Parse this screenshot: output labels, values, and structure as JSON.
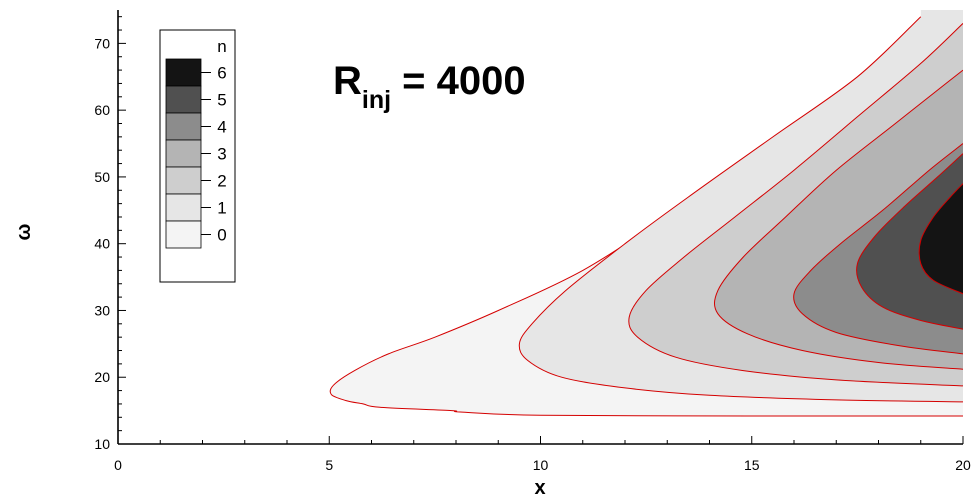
{
  "chart_data": {
    "type": "contour",
    "title": "",
    "xlabel": "x",
    "ylabel": "ω",
    "xlim": [
      0,
      20
    ],
    "ylim": [
      10,
      75
    ],
    "x_ticks": [
      0,
      5,
      10,
      15,
      20
    ],
    "y_ticks": [
      10,
      20,
      30,
      40,
      50,
      60,
      70
    ],
    "annotation": {
      "main": "R",
      "subscript": "inj",
      "rest": " = 4000"
    },
    "legend": {
      "title": "n",
      "position": "top-left",
      "levels": [
        {
          "label": "6",
          "color": "#141414"
        },
        {
          "label": "5",
          "color": "#505050"
        },
        {
          "label": "4",
          "color": "#8c8c8c"
        },
        {
          "label": "3",
          "color": "#b4b4b4"
        },
        {
          "label": "2",
          "color": "#cecece"
        },
        {
          "label": "1",
          "color": "#e6e6e6"
        },
        {
          "label": "0",
          "color": "#f4f4f4"
        }
      ]
    },
    "contours": [
      {
        "level": "1",
        "color": "#f4f4f4",
        "points": [
          [
            20,
            14.2
          ],
          [
            15,
            14.2
          ],
          [
            10,
            14.3
          ],
          [
            8.1,
            14.8
          ],
          [
            7.9,
            15
          ],
          [
            6.2,
            15.5
          ],
          [
            5.8,
            16
          ],
          [
            5.4,
            16.5
          ],
          [
            5.05,
            17.4
          ],
          [
            5.1,
            18.8
          ],
          [
            5.6,
            21
          ],
          [
            6.4,
            23.5
          ],
          [
            7.5,
            26
          ],
          [
            9,
            30
          ],
          [
            11,
            36
          ],
          [
            13,
            44
          ],
          [
            15.2,
            53
          ],
          [
            17.4,
            63
          ],
          [
            20,
            74
          ]
        ]
      },
      {
        "level": "2",
        "color": "#e6e6e6",
        "points": [
          [
            20,
            16.3
          ],
          [
            17,
            16.6
          ],
          [
            14,
            17.3
          ],
          [
            12,
            18.4
          ],
          [
            10.5,
            20
          ],
          [
            9.7,
            22.5
          ],
          [
            9.5,
            25
          ],
          [
            9.8,
            28
          ],
          [
            10.6,
            33
          ],
          [
            12,
            40
          ],
          [
            13.5,
            47
          ],
          [
            15.5,
            56
          ],
          [
            17.5,
            65
          ],
          [
            19,
            74
          ]
        ]
      },
      {
        "level": "3",
        "color": "#cecece",
        "points": [
          [
            20,
            18.7
          ],
          [
            17,
            19.6
          ],
          [
            14.8,
            21
          ],
          [
            13.2,
            23
          ],
          [
            12.3,
            26
          ],
          [
            12.1,
            29
          ],
          [
            12.5,
            33
          ],
          [
            13.4,
            38
          ],
          [
            14.6,
            44
          ],
          [
            16,
            51
          ],
          [
            17.5,
            59
          ],
          [
            19,
            67
          ],
          [
            20,
            73
          ]
        ]
      },
      {
        "level": "4",
        "color": "#b4b4b4",
        "points": [
          [
            20,
            21.2
          ],
          [
            18,
            22.2
          ],
          [
            16.2,
            24
          ],
          [
            14.9,
            26.5
          ],
          [
            14.2,
            29.5
          ],
          [
            14.2,
            33
          ],
          [
            14.8,
            38
          ],
          [
            15.8,
            44
          ],
          [
            17,
            51
          ],
          [
            18.4,
            58
          ],
          [
            19.6,
            64
          ],
          [
            20,
            66
          ]
        ]
      },
      {
        "level": "5",
        "color": "#8c8c8c",
        "points": [
          [
            20,
            23.5
          ],
          [
            18.5,
            24.7
          ],
          [
            17,
            26.7
          ],
          [
            16.2,
            29.5
          ],
          [
            16,
            32.5
          ],
          [
            16.4,
            36
          ],
          [
            17.1,
            40
          ],
          [
            18.1,
            45
          ],
          [
            19.2,
            51
          ],
          [
            20,
            55
          ]
        ]
      },
      {
        "level": "6",
        "color": "#505050",
        "points": [
          [
            20,
            27.2
          ],
          [
            19,
            28.5
          ],
          [
            18.1,
            30.5
          ],
          [
            17.6,
            33.5
          ],
          [
            17.5,
            37
          ],
          [
            17.9,
            41
          ],
          [
            18.6,
            45.5
          ],
          [
            19.4,
            50
          ],
          [
            20,
            53.5
          ]
        ]
      },
      {
        "level": "7",
        "color": "#141414",
        "points": [
          [
            20,
            32.5
          ],
          [
            19.3,
            34.5
          ],
          [
            19,
            37
          ],
          [
            19,
            40.5
          ],
          [
            19.3,
            44
          ],
          [
            19.7,
            47
          ],
          [
            20,
            49
          ]
        ]
      }
    ]
  }
}
